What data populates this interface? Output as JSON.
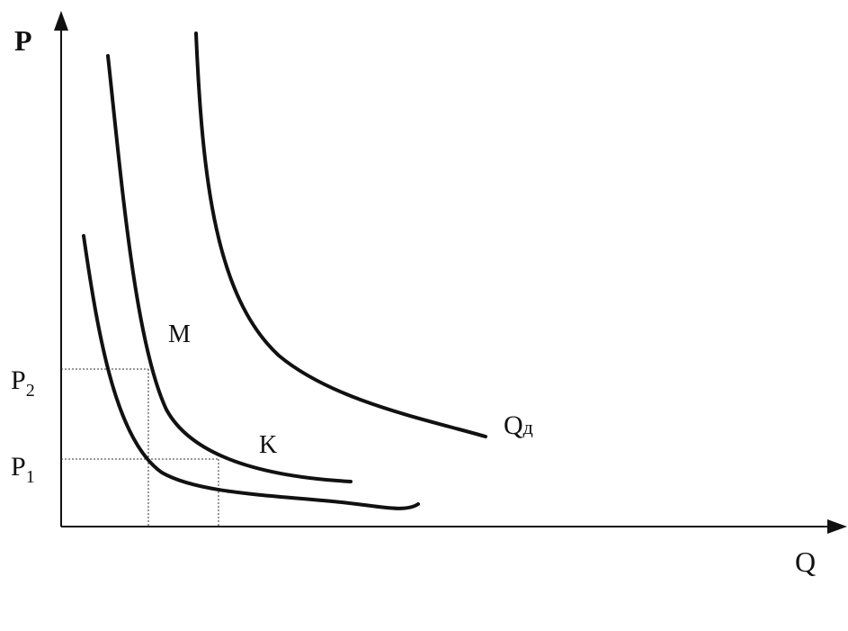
{
  "axes": {
    "y_label": "P",
    "x_label": "Q"
  },
  "levels": [
    {
      "symbol": "P",
      "subscript": "2"
    },
    {
      "symbol": "P",
      "subscript": "1"
    }
  ],
  "curves": [
    {
      "label": "M"
    },
    {
      "label": "K"
    },
    {
      "symbol": "Q",
      "subscript": "д"
    }
  ]
}
